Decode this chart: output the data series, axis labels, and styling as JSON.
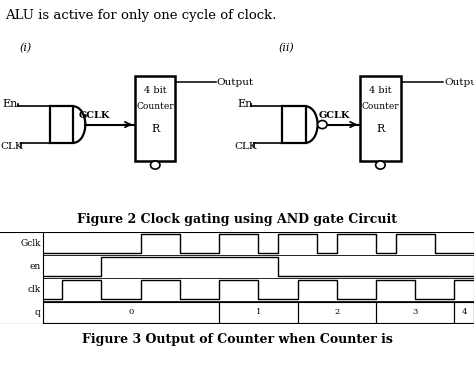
{
  "title_top": "ALU is active for only one cycle of clock.",
  "fig2_caption": "Figure 2 Clock gating using AND gate Circuit",
  "fig3_caption": "Figure 3 Output of Counter when Counter is",
  "signals": [
    "Gclk",
    "en",
    "clk",
    "q"
  ],
  "bg_color": "#ffffff",
  "line_color": "#000000",
  "timing": {
    "gclk": [
      0,
      0,
      0,
      0,
      0,
      1,
      1,
      0,
      0,
      1,
      1,
      0,
      1,
      1,
      0,
      1,
      1,
      0,
      1,
      1,
      0,
      0
    ],
    "en": [
      0,
      0,
      0,
      1,
      1,
      1,
      1,
      1,
      1,
      1,
      1,
      1,
      0,
      0,
      0,
      0,
      0,
      0,
      0,
      0,
      0,
      0
    ],
    "clk": [
      0,
      1,
      1,
      0,
      0,
      1,
      1,
      0,
      0,
      1,
      1,
      0,
      0,
      1,
      1,
      0,
      0,
      1,
      1,
      0,
      0,
      1
    ],
    "q_labels": [
      "0",
      "1",
      "2",
      "3",
      "4"
    ],
    "q_transitions": [
      0,
      9,
      13,
      17,
      21
    ]
  },
  "total_steps": 22
}
